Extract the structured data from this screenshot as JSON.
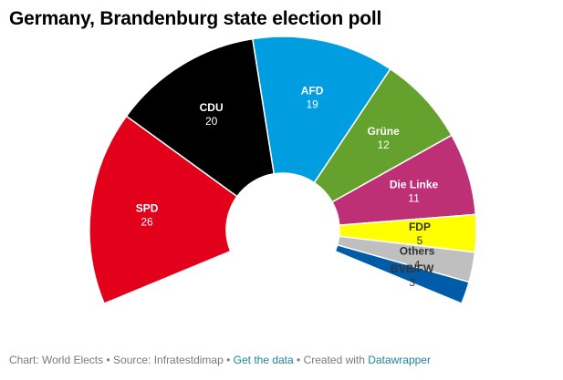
{
  "title": "Germany, Brandenburg state election poll",
  "footer": {
    "chart_by": "Chart: World Elects",
    "sep1": " • ",
    "source": "Source: Infratestdimap",
    "sep2": " • ",
    "get_data": "Get the data",
    "sep3": " • ",
    "created_with": "Created with ",
    "datawrapper": "Datawrapper"
  },
  "chart_data": {
    "type": "pie",
    "variant": "semicircle-donut",
    "title": "Germany, Brandenburg state election poll",
    "angle_span_degrees": 225,
    "slices": [
      {
        "label": "SPD",
        "value": 26,
        "color": "#e2001a",
        "text_color": "#ffffff"
      },
      {
        "label": "CDU",
        "value": 20,
        "color": "#000000",
        "text_color": "#ffffff"
      },
      {
        "label": "AFD",
        "value": 19,
        "color": "#009ee0",
        "text_color": "#ffffff"
      },
      {
        "label": "Grüne",
        "value": 12,
        "color": "#64a12d",
        "text_color": "#ffffff"
      },
      {
        "label": "Die Linke",
        "value": 11,
        "color": "#be3075",
        "text_color": "#ffffff"
      },
      {
        "label": "FDP",
        "value": 5,
        "color": "#ffff00",
        "text_color": "#333333"
      },
      {
        "label": "Others",
        "value": 4,
        "color": "#bfbfbf",
        "text_color": "#333333"
      },
      {
        "label": "BVB/FW",
        "value": 3,
        "color": "#005ca9",
        "text_color": "#333333"
      }
    ]
  }
}
